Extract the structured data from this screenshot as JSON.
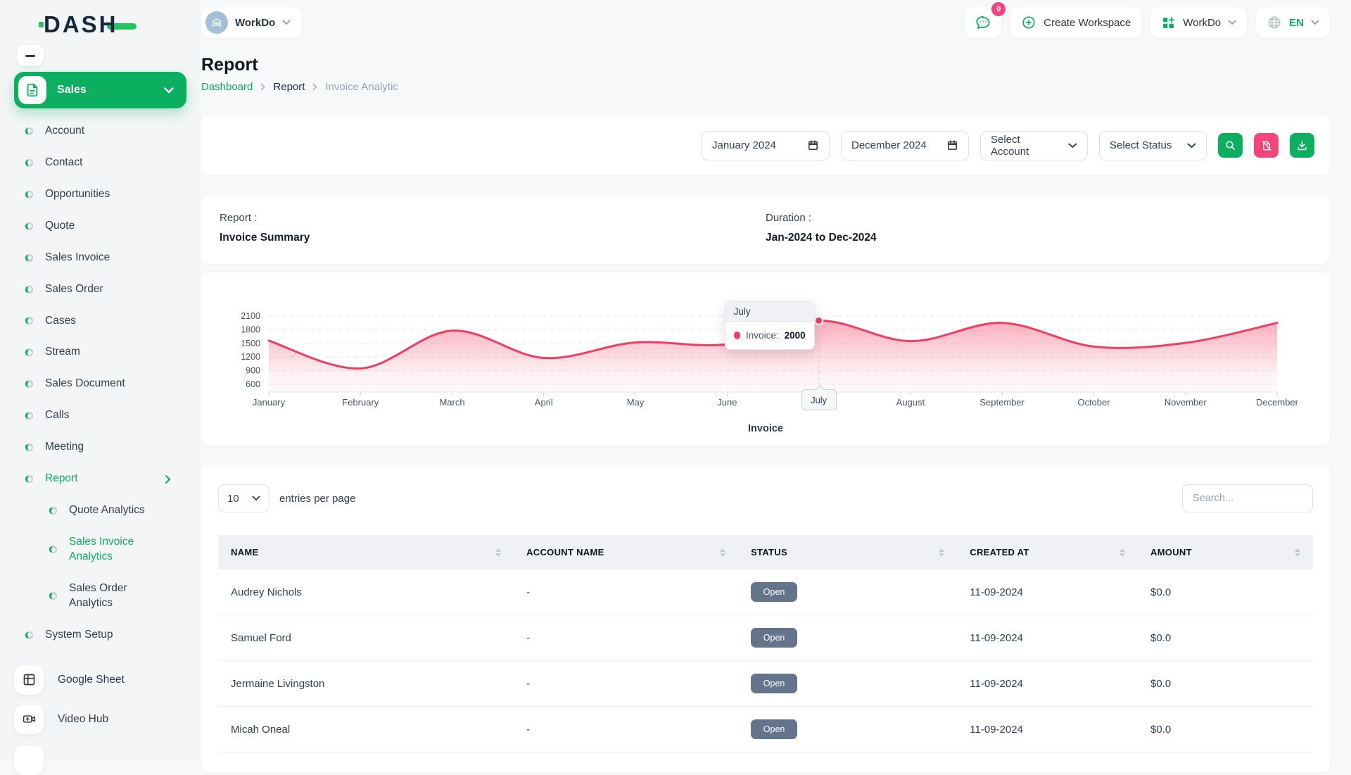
{
  "brand": {
    "name": "DASH"
  },
  "header": {
    "workspace_label": "WorkDo",
    "notification_count": "0",
    "create_workspace_label": "Create Workspace",
    "user_menu_label": "WorkDo",
    "language": "EN"
  },
  "sidebar": {
    "group_label": "Sales",
    "items": [
      {
        "label": "Account"
      },
      {
        "label": "Contact"
      },
      {
        "label": "Opportunities"
      },
      {
        "label": "Quote"
      },
      {
        "label": "Sales Invoice"
      },
      {
        "label": "Sales Order"
      },
      {
        "label": "Cases"
      },
      {
        "label": "Stream"
      },
      {
        "label": "Sales Document"
      },
      {
        "label": "Calls"
      },
      {
        "label": "Meeting"
      },
      {
        "label": "Report",
        "active": true,
        "chevron": "right"
      },
      {
        "label": "Quote Analytics",
        "sub": true
      },
      {
        "label": "Sales Invoice Analytics",
        "sub": true,
        "active": true
      },
      {
        "label": "Sales Order Analytics",
        "sub": true
      },
      {
        "label": "System Setup"
      }
    ],
    "tools": [
      {
        "label": "Google Sheet",
        "icon": "sheet"
      },
      {
        "label": "Video Hub",
        "icon": "video"
      }
    ]
  },
  "page": {
    "title": "Report",
    "breadcrumb": [
      "Dashboard",
      "Report",
      "Invoice Analytic"
    ]
  },
  "filters": {
    "start_date": "January 2024",
    "end_date": "December 2024",
    "account_placeholder": "Select Account",
    "status_placeholder": "Select Status"
  },
  "summary": {
    "report_label": "Report :",
    "report_value": "Invoice Summary",
    "duration_label": "Duration :",
    "duration_value": "Jan-2024 to Dec-2024"
  },
  "chart_data": {
    "type": "area",
    "title": "",
    "categories": [
      "January",
      "February",
      "March",
      "April",
      "May",
      "June",
      "July",
      "August",
      "September",
      "October",
      "November",
      "December"
    ],
    "series": [
      {
        "name": "Invoice",
        "values": [
          1560,
          950,
          1780,
          1180,
          1520,
          1480,
          2000,
          1550,
          1950,
          1430,
          1510,
          1950
        ]
      }
    ],
    "ylim": [
      600,
      2100
    ],
    "yticks": [
      600,
      900,
      1200,
      1500,
      1800,
      2100
    ],
    "grid": true,
    "xlabel": "Invoice",
    "line_color": "#f23d62",
    "legend_position": "none",
    "highlight": {
      "category": "July",
      "index": 6,
      "value": 2000
    },
    "tooltip": {
      "title": "July",
      "series_label": "Invoice:",
      "value": "2000"
    }
  },
  "table": {
    "entries_per_page": "10",
    "entries_label": "entries per page",
    "search_placeholder": "Search...",
    "columns": [
      "NAME",
      "ACCOUNT NAME",
      "STATUS",
      "CREATED AT",
      "AMOUNT"
    ],
    "rows": [
      {
        "name": "Audrey Nichols",
        "account_name": "-",
        "status": "Open",
        "created_at": "11-09-2024",
        "amount": "$0.0"
      },
      {
        "name": "Samuel Ford",
        "account_name": "-",
        "status": "Open",
        "created_at": "11-09-2024",
        "amount": "$0.0"
      },
      {
        "name": "Jermaine Livingston",
        "account_name": "-",
        "status": "Open",
        "created_at": "11-09-2024",
        "amount": "$0.0"
      },
      {
        "name": "Micah Oneal",
        "account_name": "-",
        "status": "Open",
        "created_at": "11-09-2024",
        "amount": "$0.0"
      }
    ]
  }
}
